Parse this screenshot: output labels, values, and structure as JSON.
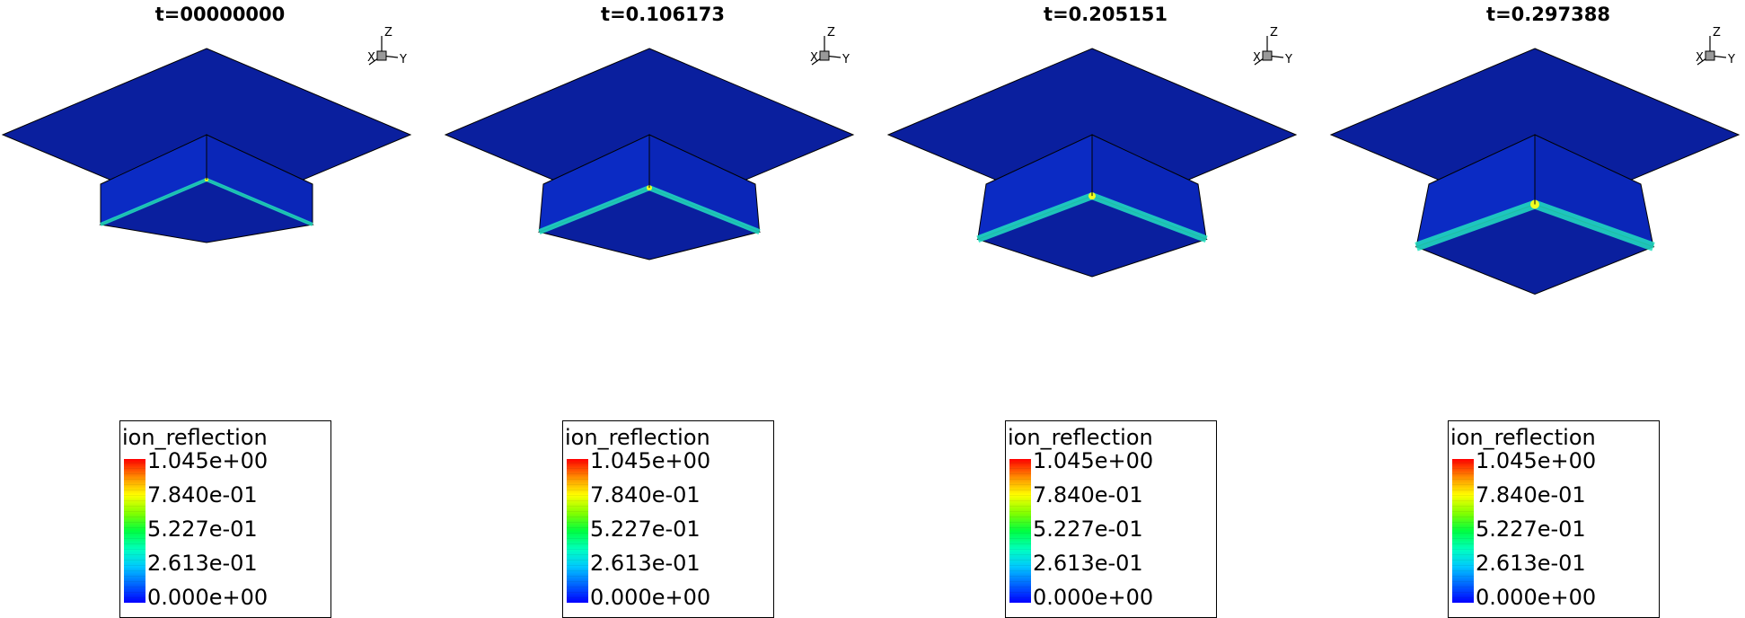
{
  "panels": [
    {
      "time_label": "t=00000000",
      "deform": 0.0,
      "legend": {
        "title": "ion_reflection",
        "ticks": [
          "1.045e+00",
          "7.840e-01",
          "5.227e-01",
          "2.613e-01",
          "0.000e+00"
        ]
      }
    },
    {
      "time_label": "t=0.106173",
      "deform": 0.33,
      "legend": {
        "title": "ion_reflection",
        "ticks": [
          "1.045e+00",
          "7.840e-01",
          "5.227e-01",
          "2.613e-01",
          "0.000e+00"
        ]
      }
    },
    {
      "time_label": "t=0.205151",
      "deform": 0.66,
      "legend": {
        "title": "ion_reflection",
        "ticks": [
          "1.045e+00",
          "7.840e-01",
          "5.227e-01",
          "2.613e-01",
          "0.000e+00"
        ]
      }
    },
    {
      "time_label": "t=0.297388",
      "deform": 1.0,
      "legend": {
        "title": "ion_reflection",
        "ticks": [
          "1.045e+00",
          "7.840e-01",
          "5.227e-01",
          "2.613e-01",
          "0.000e+00"
        ]
      }
    }
  ],
  "axes_triad": {
    "x": "X",
    "y": "Y",
    "z": "Z"
  },
  "colors": {
    "surface": "#0a1f9e",
    "wall": "#0b2bc4",
    "edge_glow": "#22e0c0",
    "hot": "#f0ff20"
  }
}
